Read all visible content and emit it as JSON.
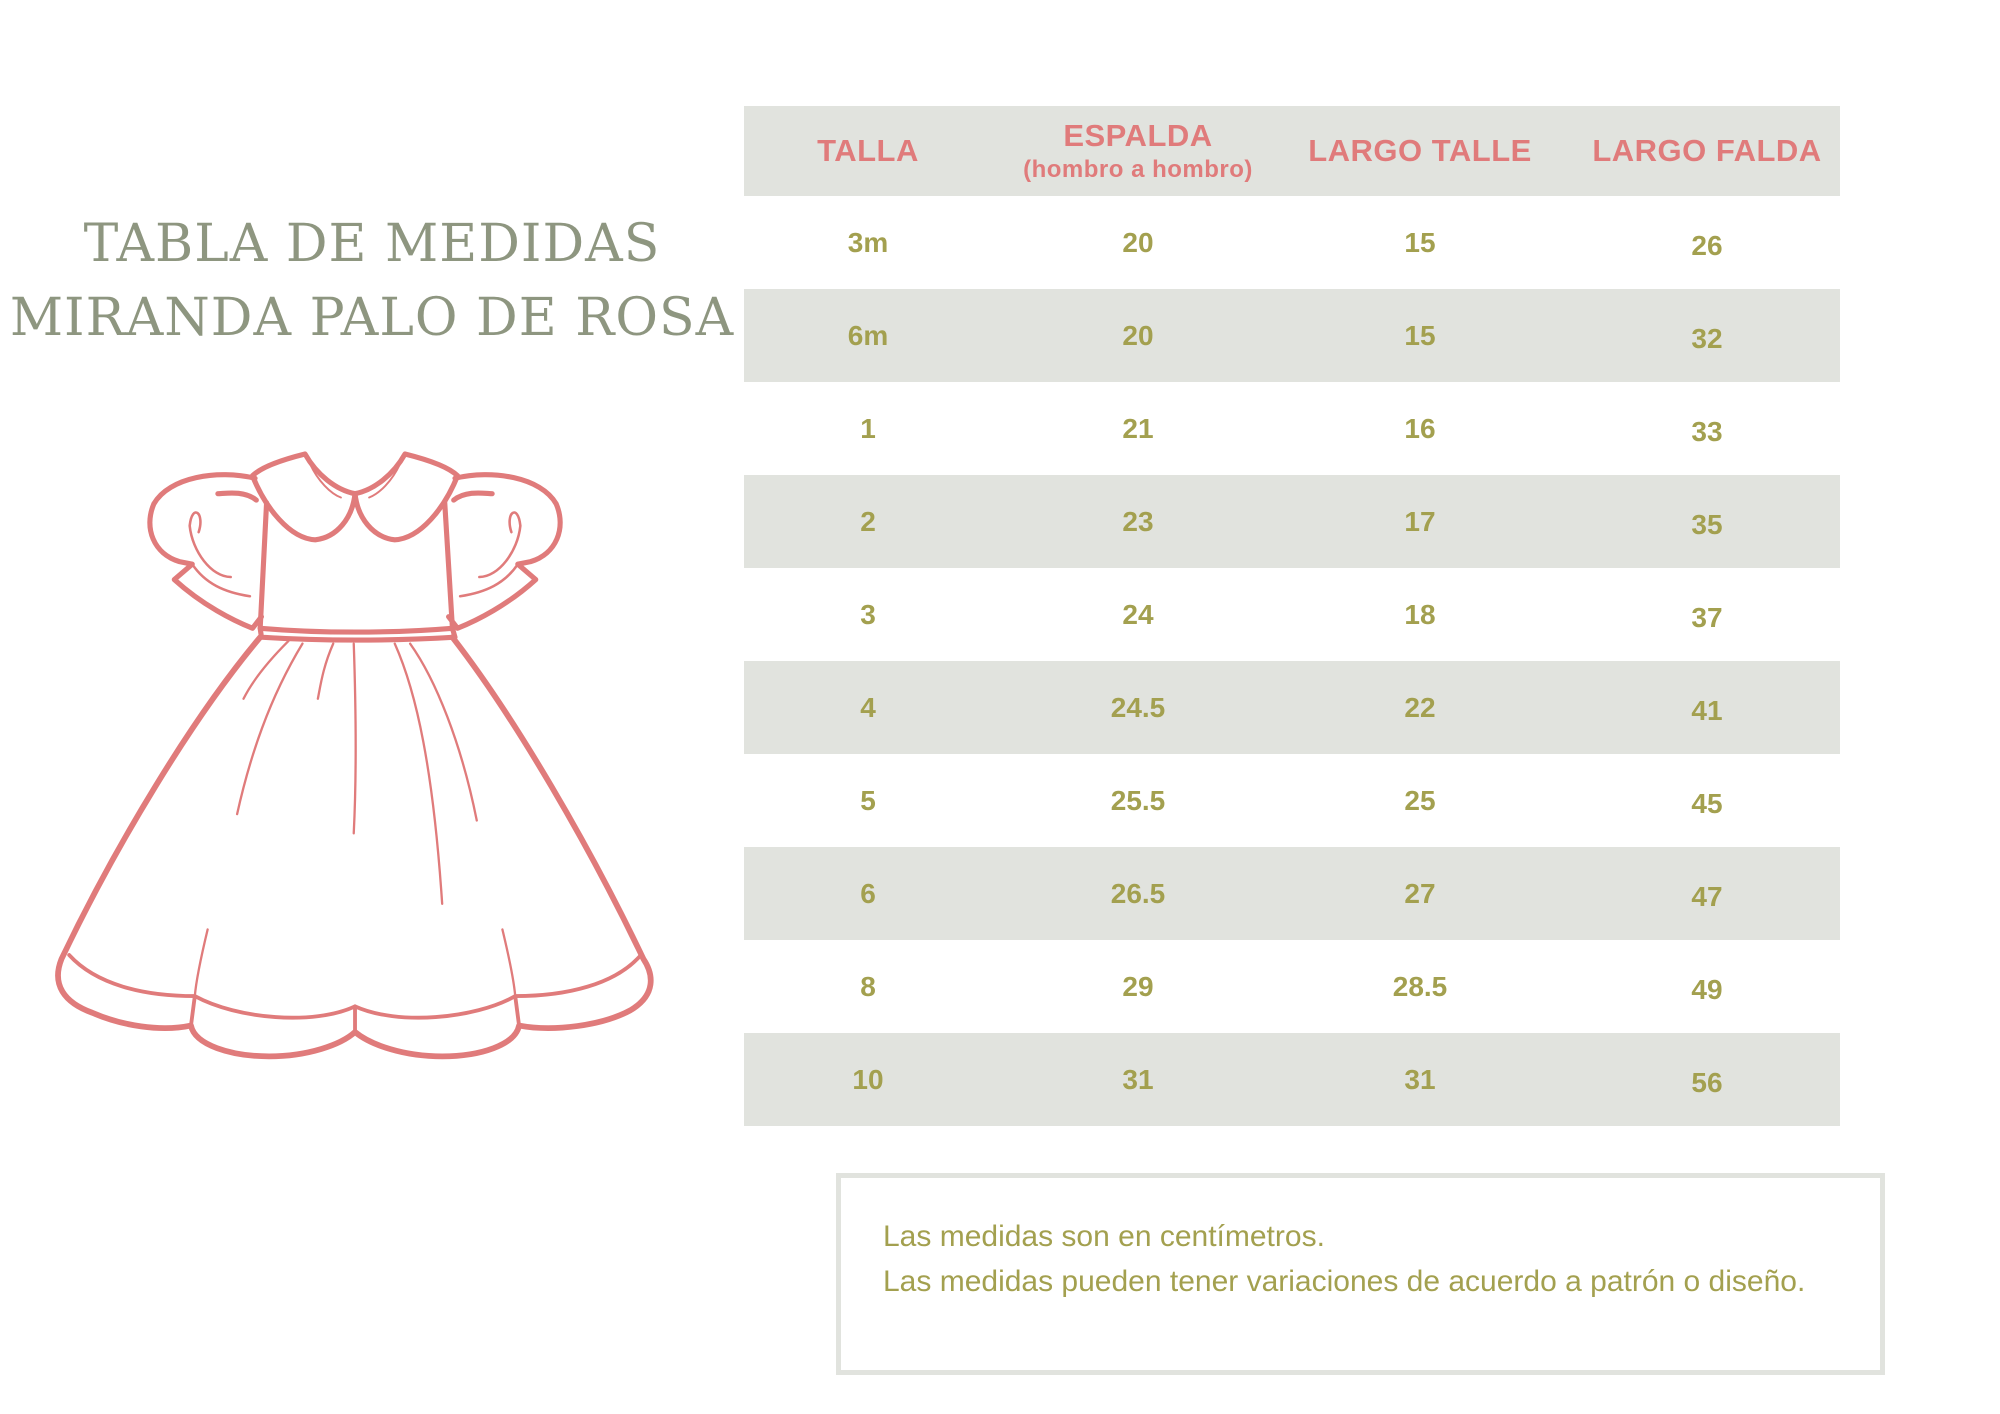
{
  "title": {
    "line1": "TABLA DE MEDIDAS",
    "line2": "MIRANDA PALO DE ROSA"
  },
  "colors": {
    "header_text": "#e07b7b",
    "values": "#a3a04f",
    "stripe": "#e1e3de",
    "title": "#8e9680",
    "dress_outline": "#e07b7b"
  },
  "illustration": "dress-outline",
  "table": {
    "headers": [
      {
        "label": "TALLA",
        "sub": ""
      },
      {
        "label": "ESPALDA",
        "sub": "(hombro a hombro)"
      },
      {
        "label": "LARGO TALLE",
        "sub": ""
      },
      {
        "label": "LARGO FALDA",
        "sub": ""
      }
    ],
    "rows": [
      [
        "3m",
        "20",
        "15",
        "26"
      ],
      [
        "6m",
        "20",
        "15",
        "32"
      ],
      [
        "1",
        "21",
        "16",
        "33"
      ],
      [
        "2",
        "23",
        "17",
        "35"
      ],
      [
        "3",
        "24",
        "18",
        "37"
      ],
      [
        "4",
        "24.5",
        "22",
        "41"
      ],
      [
        "5",
        "25.5",
        "25",
        "45"
      ],
      [
        "6",
        "26.5",
        "27",
        "47"
      ],
      [
        "8",
        "29",
        "28.5",
        "49"
      ],
      [
        "10",
        "31",
        "31",
        "56"
      ]
    ]
  },
  "note": {
    "line1": "Las medidas son en centímetros.",
    "line2": "Las medidas pueden tener variaciones de acuerdo a patrón o diseño."
  }
}
